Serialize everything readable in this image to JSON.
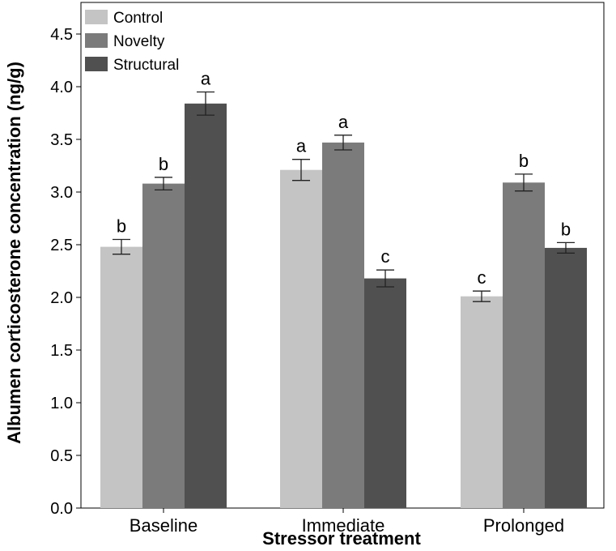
{
  "chart_data": {
    "type": "bar",
    "title": "",
    "xlabel": "Stressor treatment",
    "ylabel": "Albumen corticosterone concentration (ng/g)",
    "ylim": [
      0,
      4.8
    ],
    "yticks": [
      "0.0",
      "0.5",
      "1.0",
      "1.5",
      "2.0",
      "2.5",
      "3.0",
      "3.5",
      "4.0",
      "4.5"
    ],
    "categories": [
      "Baseline",
      "Immediate",
      "Prolonged"
    ],
    "legend_position": "top-left",
    "series": [
      {
        "name": "Control",
        "color": "#c4c4c4",
        "values": [
          2.48,
          3.21,
          2.01
        ],
        "errors": [
          0.07,
          0.1,
          0.05
        ],
        "letters": [
          "b",
          "a",
          "c"
        ]
      },
      {
        "name": "Novelty",
        "color": "#7b7b7b",
        "values": [
          3.08,
          3.47,
          3.09
        ],
        "errors": [
          0.06,
          0.07,
          0.08
        ],
        "letters": [
          "b",
          "a",
          "b"
        ]
      },
      {
        "name": "Structural",
        "color": "#505050",
        "values": [
          3.84,
          2.18,
          2.47
        ],
        "errors": [
          0.11,
          0.08,
          0.05
        ],
        "letters": [
          "a",
          "c",
          "b"
        ]
      }
    ]
  }
}
